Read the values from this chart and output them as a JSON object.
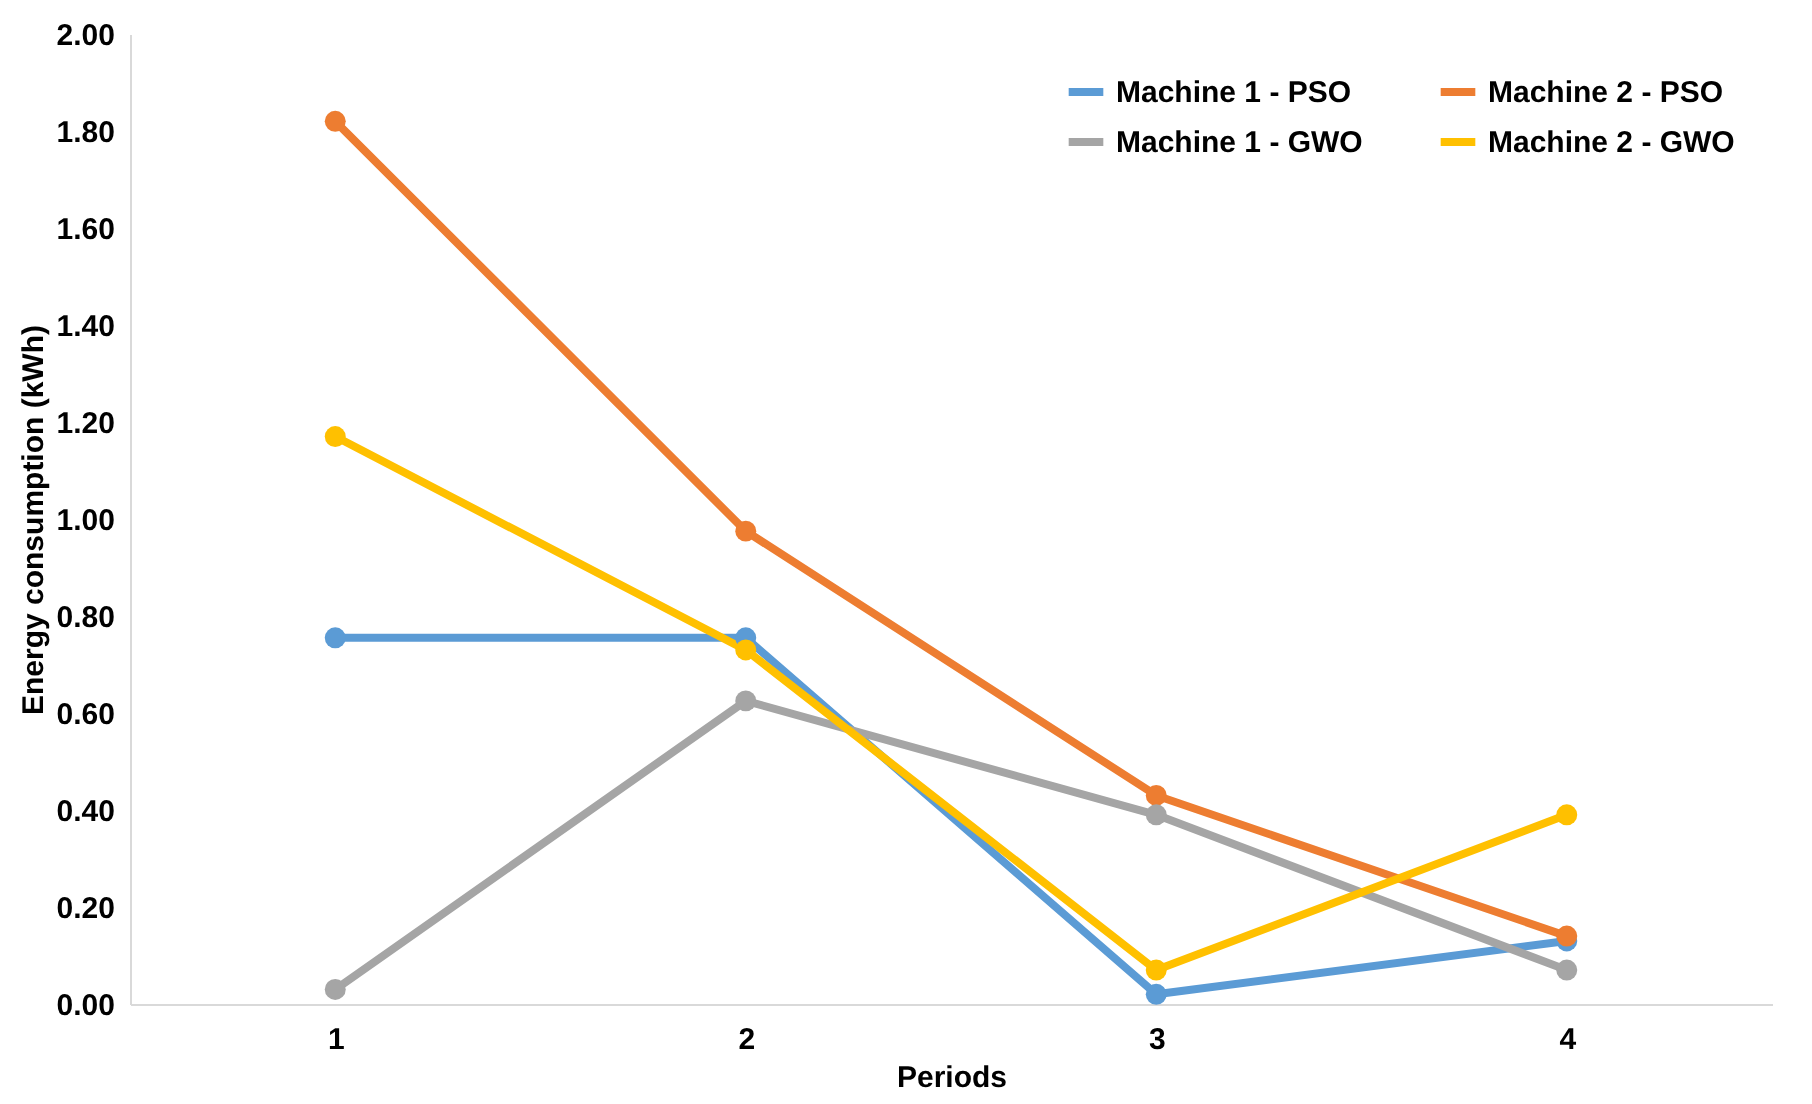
{
  "chart_data": {
    "type": "line",
    "xlabel": "Periods",
    "ylabel": "Energy consumption (kWh)",
    "categories": [
      "1",
      "2",
      "3",
      "4"
    ],
    "series": [
      {
        "name": "Machine 1 - PSO",
        "color": "#5b9bd5",
        "values": [
          0.755,
          0.755,
          0.02,
          0.13
        ]
      },
      {
        "name": "Machine 2 - PSO",
        "color": "#ed7d31",
        "values": [
          1.82,
          0.975,
          0.43,
          0.14
        ]
      },
      {
        "name": "Machine 1 - GWO",
        "color": "#a5a5a5",
        "values": [
          0.03,
          0.625,
          0.39,
          0.07
        ]
      },
      {
        "name": "Machine 2 - GWO",
        "color": "#ffc000",
        "values": [
          1.17,
          0.73,
          0.07,
          0.39
        ]
      }
    ],
    "ylim": [
      0,
      2
    ],
    "yticks": [
      {
        "value": 0,
        "label": "0.00"
      },
      {
        "value": 0.2,
        "label": "0.20"
      },
      {
        "value": 0.4,
        "label": "0.40"
      },
      {
        "value": 0.6,
        "label": "0.60"
      },
      {
        "value": 0.8,
        "label": "0.80"
      },
      {
        "value": 1,
        "label": "1.00"
      },
      {
        "value": 1.2,
        "label": "1.20"
      },
      {
        "value": 1.4,
        "label": "1.40"
      },
      {
        "value": 1.6,
        "label": "1.60"
      },
      {
        "value": 1.8,
        "label": "1.80"
      },
      {
        "value": 2,
        "label": "2.00"
      }
    ],
    "grid": false,
    "legend": "top right",
    "marker": "circle",
    "line_style": "solid"
  }
}
